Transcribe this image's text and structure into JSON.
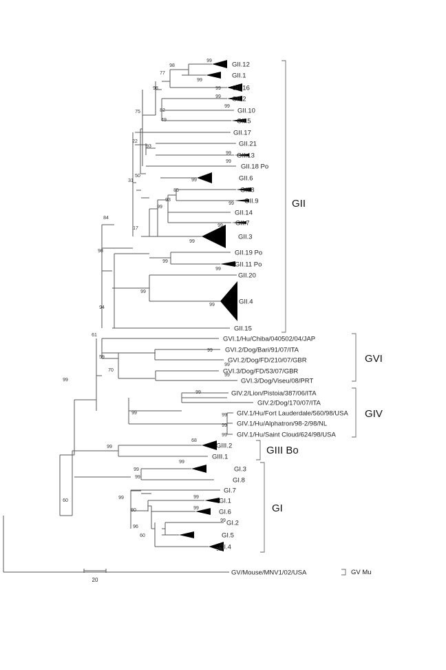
{
  "figure": {
    "leaves": [
      "GII.12",
      "GII.1",
      "GII.16",
      "GII.2",
      "GII.10",
      "GII.5",
      "GII.17",
      "GII.21",
      "GII.13",
      "GII.18 Po",
      "GII.6",
      "GII.8",
      "GII.9",
      "GII.14",
      "GII.7",
      "GII.3",
      "GII.19 Po",
      "GII.11 Po",
      "GII.20",
      "GII.4",
      "GII.15",
      "GVI.1/Hu/Chiba/040502/04/JAP",
      "GVI.2/Dog/Bari/91/07/ITA",
      "GVI.2/Dog/FD/210/07/GBR",
      "GVI.3/Dog/FD/53/07/GBR",
      "GVI.3/Dog/Viseu/08/PRT",
      "GIV.2/Lion/Pistoia/387/06/ITA",
      "GIV.2/Dog/170/07/ITA",
      "GIV.1/Hu/Fort Lauderdale/560/98/USA",
      "GIV.1/Hu/Alphatron/98-2/98/NL",
      "GIV.1/Hu/Saint Cloud/624/98/USA",
      "GIII.2",
      "GIII.1",
      "GI.3",
      "GI.8",
      "GI.7",
      "GI.1",
      "GI.6",
      "GI.2",
      "GI.5",
      "GI.4",
      "GV/Mouse/MNV1/02/USA"
    ],
    "bootstrap": [
      "99",
      "98",
      "99",
      "77",
      "98",
      "99",
      "99",
      "82",
      "99",
      "49",
      "75",
      "93",
      "99",
      "22",
      "50",
      "99",
      "99",
      "31",
      "85",
      "93",
      "99",
      "99",
      "17",
      "99",
      "99",
      "84",
      "99",
      "99",
      "98",
      "99",
      "99",
      "94",
      "61",
      "99",
      "59",
      "99",
      "70",
      "99",
      "99",
      "99",
      "99",
      "99",
      "99",
      "99",
      "99",
      "68",
      "99",
      "99",
      "99",
      "99",
      "60",
      "99",
      "99",
      "80",
      "96",
      "99",
      "60",
      "99"
    ],
    "groups": [
      "GII",
      "GVI",
      "GIV",
      "GIII Bo",
      "GI",
      "GV Mu"
    ],
    "scale_label": "20"
  }
}
